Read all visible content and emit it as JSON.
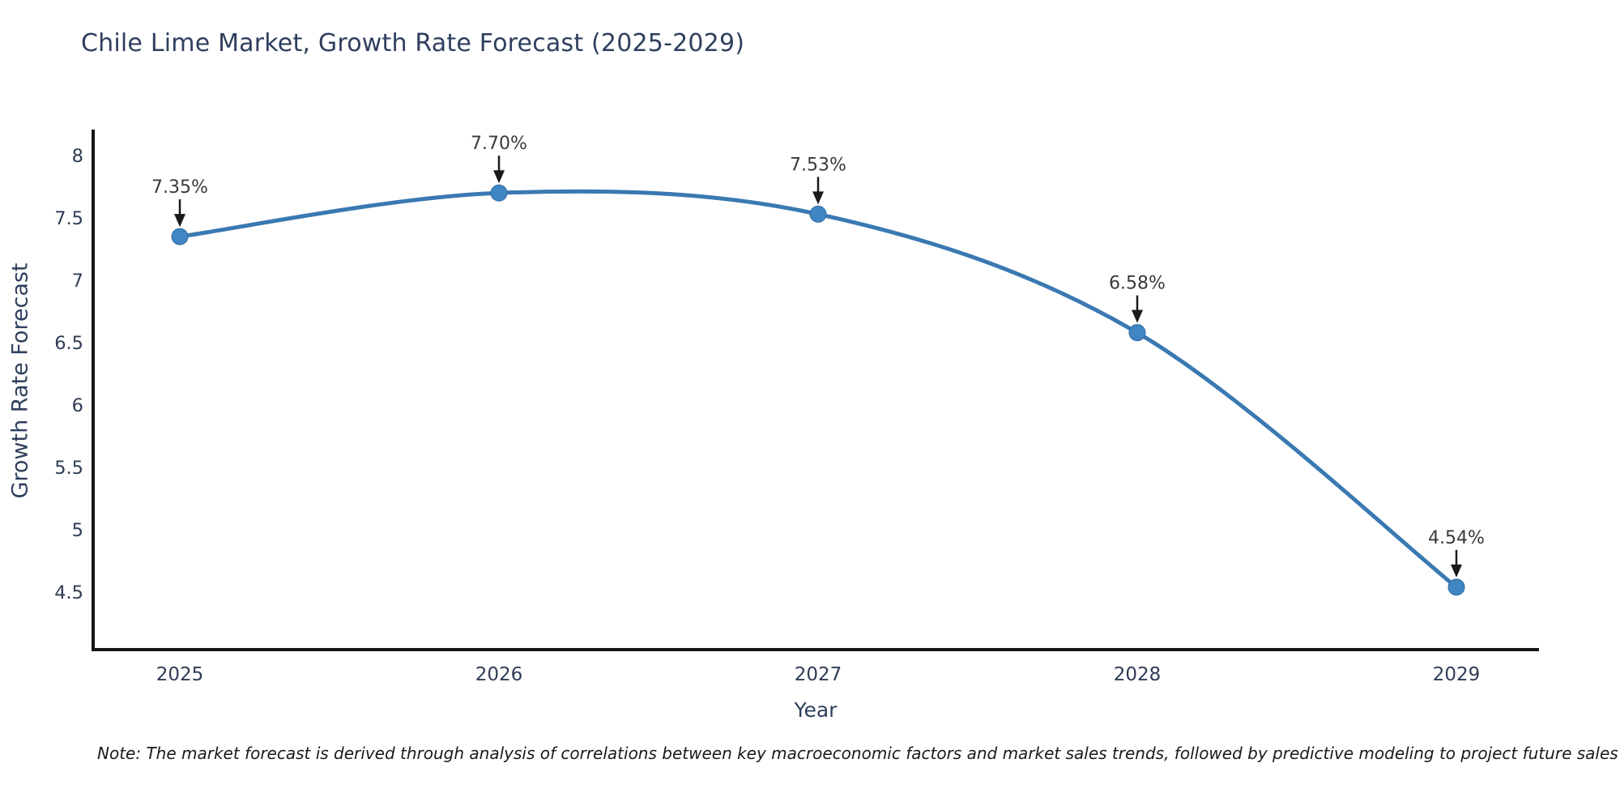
{
  "title": "Chile Lime Market, Growth Rate Forecast (2025-2029)",
  "note": "Note: The market forecast is derived through analysis of correlations between key macroeconomic factors and market sales trends, followed by predictive modeling to project future sales",
  "chart_data": {
    "type": "line",
    "title": "Chile Lime Market, Growth Rate Forecast (2025-2029)",
    "xlabel": "Year",
    "ylabel": "Growth Rate Forecast",
    "x": [
      2025,
      2026,
      2027,
      2028,
      2029
    ],
    "values": [
      7.35,
      7.7,
      7.53,
      6.58,
      4.54
    ],
    "point_labels": [
      "7.35%",
      "7.70%",
      "7.53%",
      "6.58%",
      "4.54%"
    ],
    "yticks": [
      8,
      7.5,
      7,
      6.5,
      6,
      5.5,
      5,
      4.5
    ],
    "ylim": [
      4.05,
      8.2
    ],
    "grid": false,
    "legend": "none",
    "marker": "circle",
    "annotation_style": "label-with-down-arrow",
    "colors": {
      "line": "#3a79b2",
      "marker_fill": "#3f86c2",
      "marker_edge": "#2f6ba3",
      "axis_line": "#151515",
      "tick_text": "#2f3c55",
      "axis_title_text": "#2f3f5e",
      "annotation_text": "#3a3a3a",
      "arrow": "#1a1a1a",
      "background": "#ffffff"
    }
  }
}
